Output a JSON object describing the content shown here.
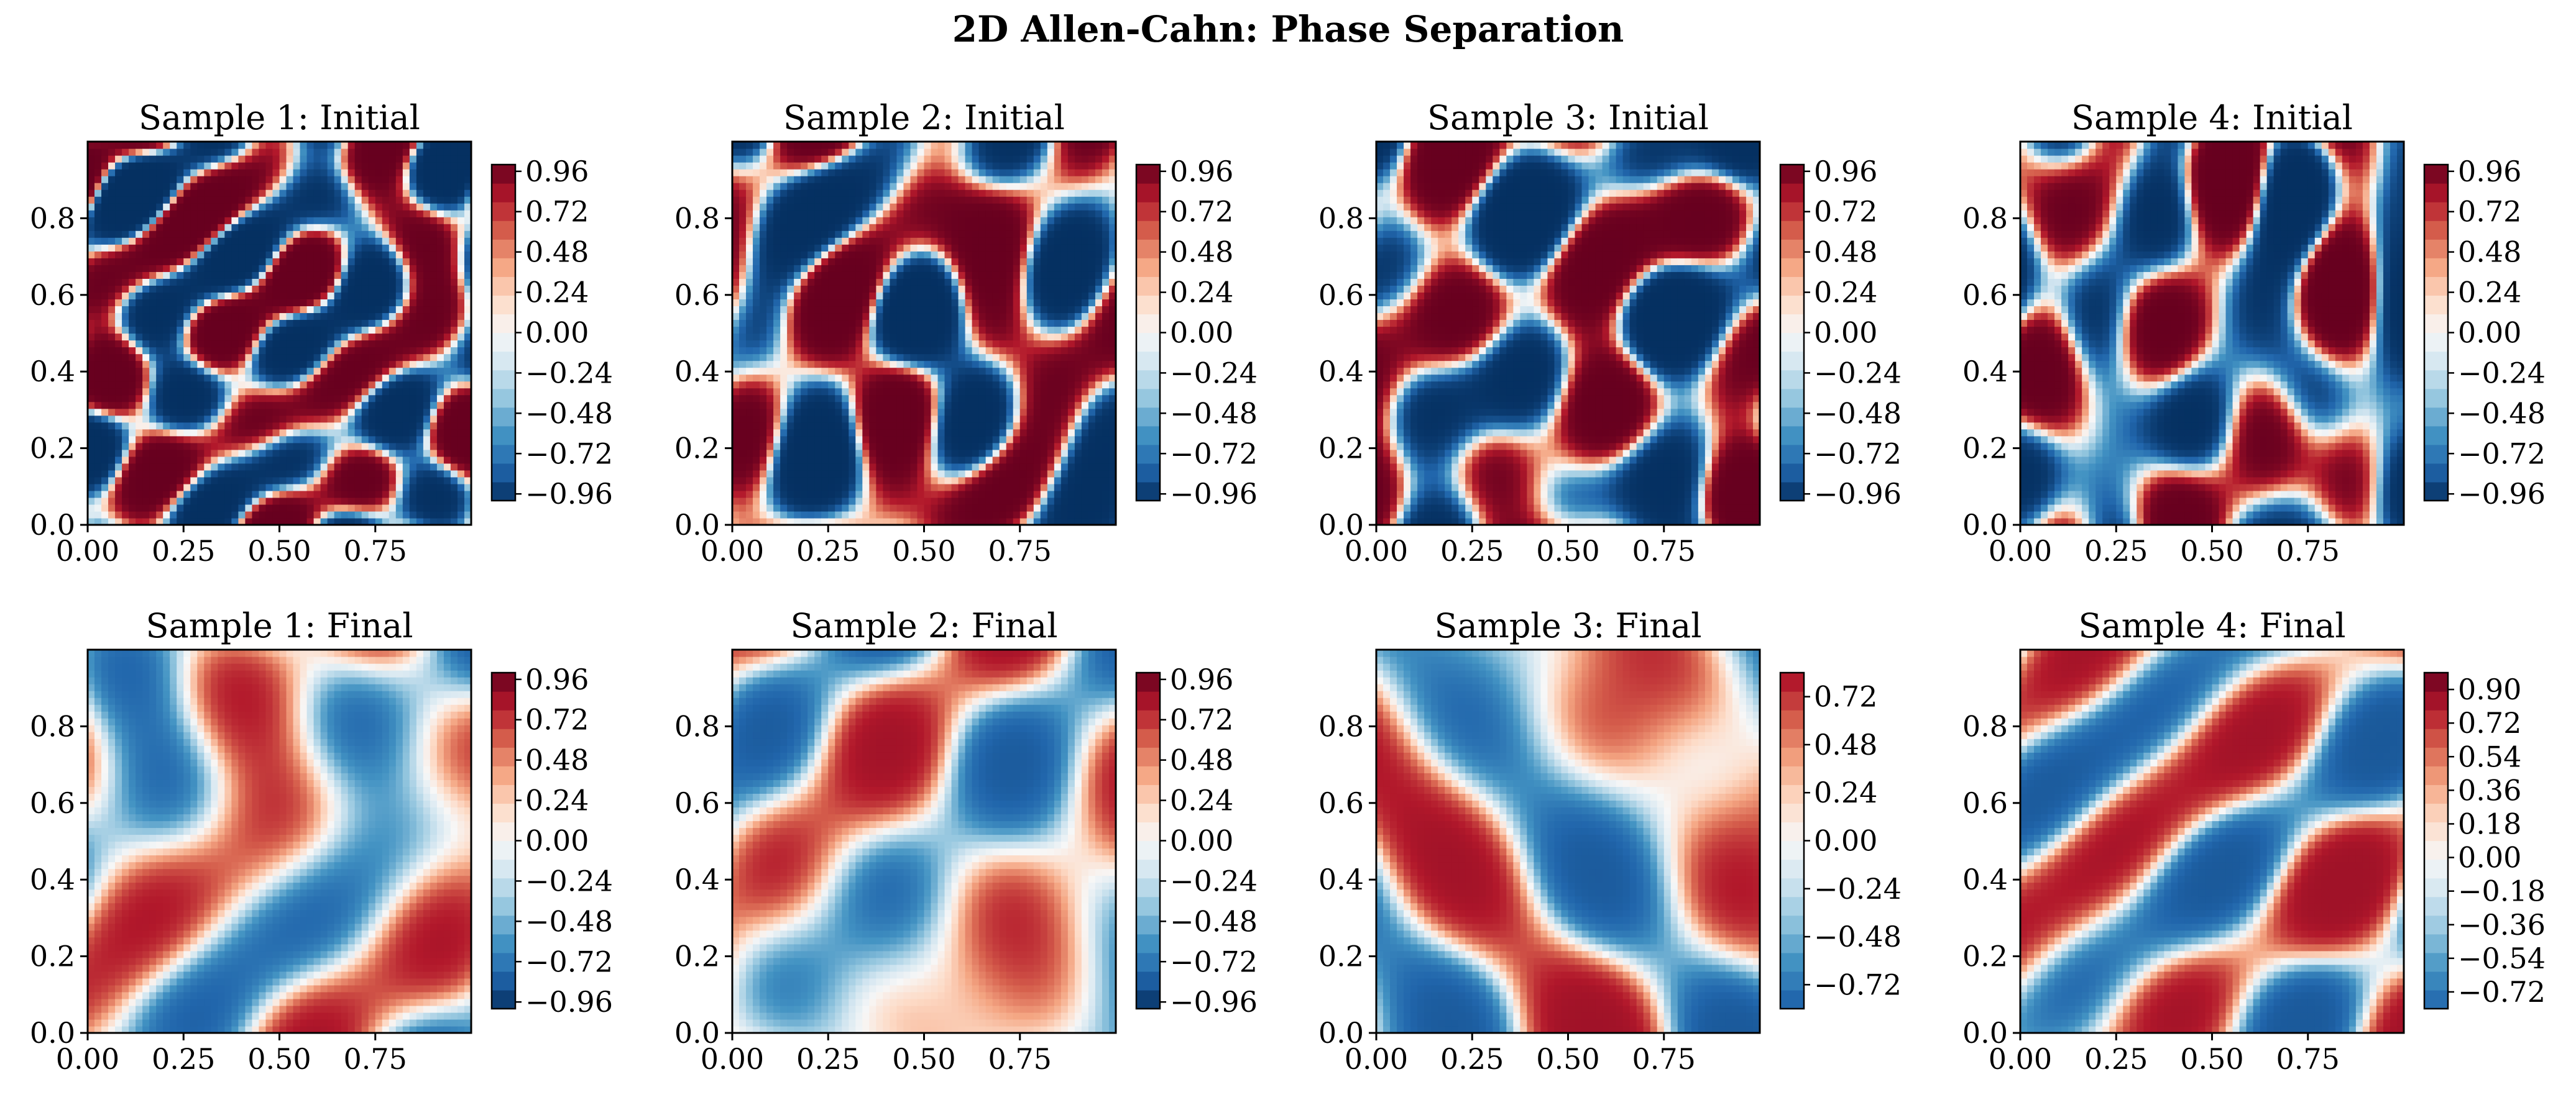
{
  "figure": {
    "title": "2D Allen-Cahn: Phase Separation"
  },
  "chart_data": [
    {
      "type": "heatmap",
      "title": "Sample 1: Initial",
      "xlim": [
        0,
        1
      ],
      "ylim": [
        0,
        1
      ],
      "x_ticks": [
        "0.00",
        "0.25",
        "0.50",
        "0.75"
      ],
      "y_ticks": [
        "0.0",
        "0.2",
        "0.4",
        "0.6",
        "0.8"
      ],
      "colormap": "RdBu_r",
      "colorbar_range": [
        -1.0,
        1.0
      ],
      "colorbar_ticks": [
        "0.96",
        "0.72",
        "0.48",
        "0.24",
        "0.00",
        "−0.24",
        "−0.48",
        "−0.72",
        "−0.96"
      ],
      "colorbar_values": [
        0.96,
        0.72,
        0.48,
        0.24,
        0.0,
        -0.24,
        -0.48,
        -0.72,
        -0.96
      ]
    },
    {
      "type": "heatmap",
      "title": "Sample 2: Initial",
      "xlim": [
        0,
        1
      ],
      "ylim": [
        0,
        1
      ],
      "x_ticks": [
        "0.00",
        "0.25",
        "0.50",
        "0.75"
      ],
      "y_ticks": [
        "0.0",
        "0.2",
        "0.4",
        "0.6",
        "0.8"
      ],
      "colormap": "RdBu_r",
      "colorbar_range": [
        -1.0,
        1.0
      ],
      "colorbar_ticks": [
        "0.96",
        "0.72",
        "0.48",
        "0.24",
        "0.00",
        "−0.24",
        "−0.48",
        "−0.72",
        "−0.96"
      ],
      "colorbar_values": [
        0.96,
        0.72,
        0.48,
        0.24,
        0.0,
        -0.24,
        -0.48,
        -0.72,
        -0.96
      ]
    },
    {
      "type": "heatmap",
      "title": "Sample 3: Initial",
      "xlim": [
        0,
        1
      ],
      "ylim": [
        0,
        1
      ],
      "x_ticks": [
        "0.00",
        "0.25",
        "0.50",
        "0.75"
      ],
      "y_ticks": [
        "0.0",
        "0.2",
        "0.4",
        "0.6",
        "0.8"
      ],
      "colormap": "RdBu_r",
      "colorbar_range": [
        -1.0,
        1.0
      ],
      "colorbar_ticks": [
        "0.96",
        "0.72",
        "0.48",
        "0.24",
        "0.00",
        "−0.24",
        "−0.48",
        "−0.72",
        "−0.96"
      ],
      "colorbar_values": [
        0.96,
        0.72,
        0.48,
        0.24,
        0.0,
        -0.24,
        -0.48,
        -0.72,
        -0.96
      ]
    },
    {
      "type": "heatmap",
      "title": "Sample 4: Initial",
      "xlim": [
        0,
        1
      ],
      "ylim": [
        0,
        1
      ],
      "x_ticks": [
        "0.00",
        "0.25",
        "0.50",
        "0.75"
      ],
      "y_ticks": [
        "0.0",
        "0.2",
        "0.4",
        "0.6",
        "0.8"
      ],
      "colormap": "RdBu_r",
      "colorbar_range": [
        -1.0,
        1.0
      ],
      "colorbar_ticks": [
        "0.96",
        "0.72",
        "0.48",
        "0.24",
        "0.00",
        "−0.24",
        "−0.48",
        "−0.72",
        "−0.96"
      ],
      "colorbar_values": [
        0.96,
        0.72,
        0.48,
        0.24,
        0.0,
        -0.24,
        -0.48,
        -0.72,
        -0.96
      ]
    },
    {
      "type": "heatmap",
      "title": "Sample 1: Final",
      "xlim": [
        0,
        1
      ],
      "ylim": [
        0,
        1
      ],
      "x_ticks": [
        "0.00",
        "0.25",
        "0.50",
        "0.75"
      ],
      "y_ticks": [
        "0.0",
        "0.2",
        "0.4",
        "0.6",
        "0.8"
      ],
      "colormap": "RdBu_r",
      "colorbar_range": [
        -1.0,
        1.0
      ],
      "colorbar_ticks": [
        "0.96",
        "0.72",
        "0.48",
        "0.24",
        "0.00",
        "−0.24",
        "−0.48",
        "−0.72",
        "−0.96"
      ],
      "colorbar_values": [
        0.96,
        0.72,
        0.48,
        0.24,
        0.0,
        -0.24,
        -0.48,
        -0.72,
        -0.96
      ]
    },
    {
      "type": "heatmap",
      "title": "Sample 2: Final",
      "xlim": [
        0,
        1
      ],
      "ylim": [
        0,
        1
      ],
      "x_ticks": [
        "0.00",
        "0.25",
        "0.50",
        "0.75"
      ],
      "y_ticks": [
        "0.0",
        "0.2",
        "0.4",
        "0.6",
        "0.8"
      ],
      "colormap": "RdBu_r",
      "colorbar_range": [
        -1.0,
        1.0
      ],
      "colorbar_ticks": [
        "0.96",
        "0.72",
        "0.48",
        "0.24",
        "0.00",
        "−0.24",
        "−0.48",
        "−0.72",
        "−0.96"
      ],
      "colorbar_values": [
        0.96,
        0.72,
        0.48,
        0.24,
        0.0,
        -0.24,
        -0.48,
        -0.72,
        -0.96
      ]
    },
    {
      "type": "heatmap",
      "title": "Sample 3: Final",
      "xlim": [
        0,
        1
      ],
      "ylim": [
        0,
        1
      ],
      "x_ticks": [
        "0.00",
        "0.25",
        "0.50",
        "0.75"
      ],
      "y_ticks": [
        "0.0",
        "0.2",
        "0.4",
        "0.6",
        "0.8"
      ],
      "colormap": "RdBu_r",
      "colorbar_range": [
        -0.84,
        0.84
      ],
      "colorbar_ticks": [
        "0.72",
        "0.48",
        "0.24",
        "0.00",
        "−0.24",
        "−0.48",
        "−0.72"
      ],
      "colorbar_values": [
        0.72,
        0.48,
        0.24,
        0.0,
        -0.24,
        -0.48,
        -0.72
      ]
    },
    {
      "type": "heatmap",
      "title": "Sample 4: Final",
      "xlim": [
        0,
        1
      ],
      "ylim": [
        0,
        1
      ],
      "x_ticks": [
        "0.00",
        "0.25",
        "0.50",
        "0.75"
      ],
      "y_ticks": [
        "0.0",
        "0.2",
        "0.4",
        "0.6",
        "0.8"
      ],
      "colormap": "RdBu_r",
      "colorbar_range": [
        -0.81,
        0.99
      ],
      "colorbar_ticks": [
        "0.90",
        "0.72",
        "0.54",
        "0.36",
        "0.18",
        "0.00",
        "−0.18",
        "−0.36",
        "−0.54",
        "−0.72"
      ],
      "colorbar_values": [
        0.9,
        0.72,
        0.54,
        0.36,
        0.18,
        0.0,
        -0.18,
        -0.36,
        -0.54,
        -0.72
      ]
    }
  ]
}
